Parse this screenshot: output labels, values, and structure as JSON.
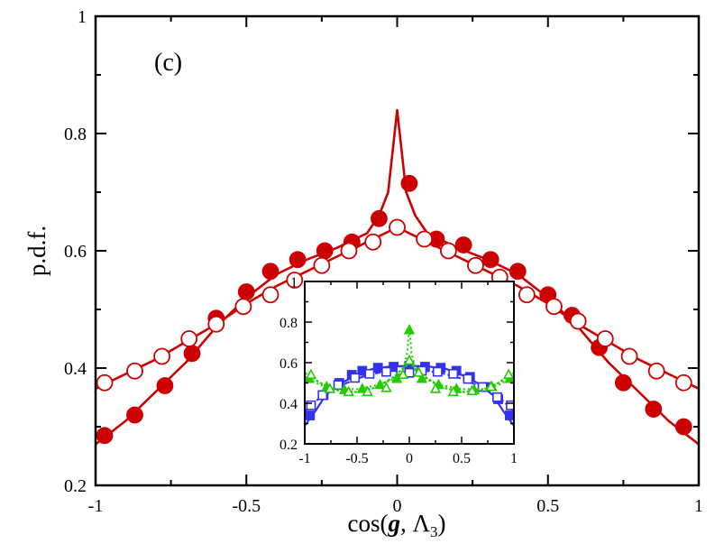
{
  "chart_data": {
    "type": "line",
    "panel_label": "(c)",
    "xlabel": {
      "prefix": "cos(",
      "bold_italic": "g",
      "sep": ", Λ",
      "subscript": "3",
      "suffix": ")"
    },
    "ylabel": "p.d.f.",
    "xlim": [
      -1,
      1
    ],
    "ylim": [
      0.2,
      1.0
    ],
    "xticks": [
      -1,
      -0.5,
      0,
      0.5,
      1
    ],
    "xtick_labels": [
      "-1",
      "-0.5",
      "0",
      "0.5",
      "1"
    ],
    "yticks": [
      0.2,
      0.4,
      0.6,
      0.8,
      1.0
    ],
    "ytick_labels": [
      "0.2",
      "0.4",
      "0.6",
      "0.8",
      "1"
    ],
    "grid": false,
    "legend": "none",
    "colors": {
      "red": "#cc0000",
      "blue": "#3333ee",
      "green": "#22cc00"
    },
    "series": [
      {
        "color": "#cc0000",
        "marker": "filled-circle",
        "line_x": [
          -1,
          -0.9,
          -0.8,
          -0.7,
          -0.6,
          -0.5,
          -0.4,
          -0.3,
          -0.2,
          -0.1,
          -0.06,
          -0.03,
          -0.015,
          0,
          0.015,
          0.03,
          0.06,
          0.1,
          0.2,
          0.3,
          0.4,
          0.5,
          0.6,
          0.7,
          0.8,
          0.9,
          1
        ],
        "line_y": [
          0.27,
          0.31,
          0.36,
          0.41,
          0.47,
          0.52,
          0.56,
          0.585,
          0.605,
          0.63,
          0.66,
          0.7,
          0.77,
          0.84,
          0.77,
          0.7,
          0.66,
          0.63,
          0.605,
          0.585,
          0.56,
          0.52,
          0.47,
          0.41,
          0.36,
          0.31,
          0.27
        ],
        "points_x": [
          -0.97,
          -0.87,
          -0.77,
          -0.68,
          -0.6,
          -0.5,
          -0.42,
          -0.33,
          -0.24,
          -0.15,
          -0.06,
          0.04,
          0.13,
          0.22,
          0.31,
          0.4,
          0.5,
          0.58,
          0.67,
          0.75,
          0.85,
          0.95
        ],
        "points_y": [
          0.285,
          0.32,
          0.37,
          0.425,
          0.485,
          0.53,
          0.565,
          0.585,
          0.6,
          0.615,
          0.655,
          0.715,
          0.62,
          0.61,
          0.585,
          0.565,
          0.525,
          0.49,
          0.435,
          0.375,
          0.33,
          0.3
        ]
      },
      {
        "color": "#cc0000",
        "marker": "open-circle",
        "line_x": [
          -1,
          -0.9,
          -0.8,
          -0.7,
          -0.6,
          -0.5,
          -0.4,
          -0.3,
          -0.2,
          -0.1,
          0,
          0.1,
          0.2,
          0.3,
          0.4,
          0.5,
          0.6,
          0.7,
          0.8,
          0.9,
          1
        ],
        "line_y": [
          0.365,
          0.39,
          0.415,
          0.445,
          0.475,
          0.51,
          0.54,
          0.565,
          0.59,
          0.615,
          0.64,
          0.615,
          0.59,
          0.565,
          0.54,
          0.51,
          0.475,
          0.445,
          0.415,
          0.39,
          0.365
        ],
        "points_x": [
          -0.97,
          -0.87,
          -0.78,
          -0.69,
          -0.6,
          -0.51,
          -0.42,
          -0.34,
          -0.25,
          -0.16,
          -0.08,
          0,
          0.09,
          0.17,
          0.26,
          0.34,
          0.43,
          0.52,
          0.6,
          0.69,
          0.77,
          0.86,
          0.95
        ],
        "points_y": [
          0.375,
          0.395,
          0.42,
          0.45,
          0.475,
          0.505,
          0.525,
          0.55,
          0.575,
          0.6,
          0.615,
          0.64,
          0.62,
          0.6,
          0.575,
          0.555,
          0.525,
          0.505,
          0.48,
          0.45,
          0.42,
          0.395,
          0.375
        ]
      }
    ],
    "inset": {
      "type": "line",
      "xlim": [
        -1,
        1
      ],
      "ylim": [
        0.2,
        1.0
      ],
      "xticks": [
        -1,
        -0.5,
        0,
        0.5,
        1
      ],
      "xtick_labels": [
        "-1",
        "-0.5",
        "0",
        "0.5",
        "1"
      ],
      "yticks": [
        0.2,
        0.4,
        0.6,
        0.8,
        1.0
      ],
      "ytick_labels": [
        "0.2",
        "0.4",
        "0.6",
        "0.8",
        "1"
      ],
      "series": [
        {
          "color": "#3333ee",
          "marker": "filled-square",
          "dash": "",
          "line_x": [
            -1,
            -0.9,
            -0.8,
            -0.65,
            -0.5,
            -0.35,
            -0.2,
            0,
            0.2,
            0.35,
            0.5,
            0.65,
            0.8,
            0.9,
            1
          ],
          "line_y": [
            0.29,
            0.36,
            0.44,
            0.5,
            0.54,
            0.57,
            0.58,
            0.585,
            0.58,
            0.57,
            0.54,
            0.5,
            0.44,
            0.36,
            0.29
          ],
          "points_x": [
            -0.95,
            -0.82,
            -0.67,
            -0.55,
            -0.45,
            -0.3,
            -0.15,
            0,
            0.15,
            0.3,
            0.45,
            0.58,
            0.73,
            0.85,
            0.96
          ],
          "points_y": [
            0.34,
            0.44,
            0.5,
            0.54,
            0.56,
            0.575,
            0.58,
            0.585,
            0.58,
            0.575,
            0.56,
            0.53,
            0.48,
            0.42,
            0.34
          ]
        },
        {
          "color": "#3333ee",
          "marker": "open-square",
          "dash": "6 3",
          "line_x": [
            -1,
            -0.9,
            -0.75,
            -0.6,
            -0.45,
            -0.3,
            -0.15,
            0,
            0.15,
            0.3,
            0.45,
            0.6,
            0.75,
            0.9,
            1
          ],
          "line_y": [
            0.36,
            0.41,
            0.46,
            0.5,
            0.53,
            0.55,
            0.56,
            0.555,
            0.56,
            0.55,
            0.53,
            0.5,
            0.46,
            0.41,
            0.36
          ],
          "points_x": [
            -0.94,
            -0.83,
            -0.68,
            -0.52,
            -0.38,
            -0.22,
            -0.08,
            0,
            0.12,
            0.27,
            0.42,
            0.56,
            0.7,
            0.84,
            0.97
          ],
          "points_y": [
            0.39,
            0.44,
            0.49,
            0.525,
            0.545,
            0.555,
            0.56,
            0.55,
            0.56,
            0.555,
            0.545,
            0.52,
            0.48,
            0.43,
            0.39
          ]
        },
        {
          "color": "#22cc00",
          "marker": "filled-triangle",
          "dash": "2 3",
          "line_x": [
            -1,
            -0.85,
            -0.7,
            -0.5,
            -0.3,
            -0.15,
            -0.06,
            -0.02,
            0,
            0.02,
            0.06,
            0.15,
            0.3,
            0.5,
            0.7,
            0.85,
            1
          ],
          "line_y": [
            0.53,
            0.49,
            0.47,
            0.47,
            0.49,
            0.52,
            0.56,
            0.65,
            0.78,
            0.65,
            0.56,
            0.52,
            0.49,
            0.47,
            0.47,
            0.49,
            0.53
          ],
          "points_x": [
            -0.96,
            -0.79,
            -0.62,
            -0.45,
            -0.28,
            -0.12,
            0,
            0.12,
            0.28,
            0.45,
            0.62,
            0.79,
            0.96
          ],
          "points_y": [
            0.52,
            0.48,
            0.465,
            0.47,
            0.49,
            0.52,
            0.76,
            0.52,
            0.49,
            0.47,
            0.465,
            0.48,
            0.52
          ]
        },
        {
          "color": "#22cc00",
          "marker": "open-triangle",
          "dash": "3 2",
          "line_x": [
            -1,
            -0.85,
            -0.7,
            -0.5,
            -0.3,
            -0.15,
            0,
            0.15,
            0.3,
            0.5,
            0.7,
            0.85,
            1
          ],
          "line_y": [
            0.55,
            0.5,
            0.465,
            0.455,
            0.48,
            0.53,
            0.6,
            0.53,
            0.48,
            0.455,
            0.465,
            0.5,
            0.55
          ],
          "points_x": [
            -0.94,
            -0.76,
            -0.58,
            -0.4,
            -0.22,
            -0.06,
            0,
            0.09,
            0.25,
            0.42,
            0.6,
            0.78,
            0.95
          ],
          "points_y": [
            0.54,
            0.47,
            0.455,
            0.455,
            0.475,
            0.54,
            0.61,
            0.55,
            0.47,
            0.455,
            0.46,
            0.48,
            0.54
          ]
        }
      ]
    }
  }
}
